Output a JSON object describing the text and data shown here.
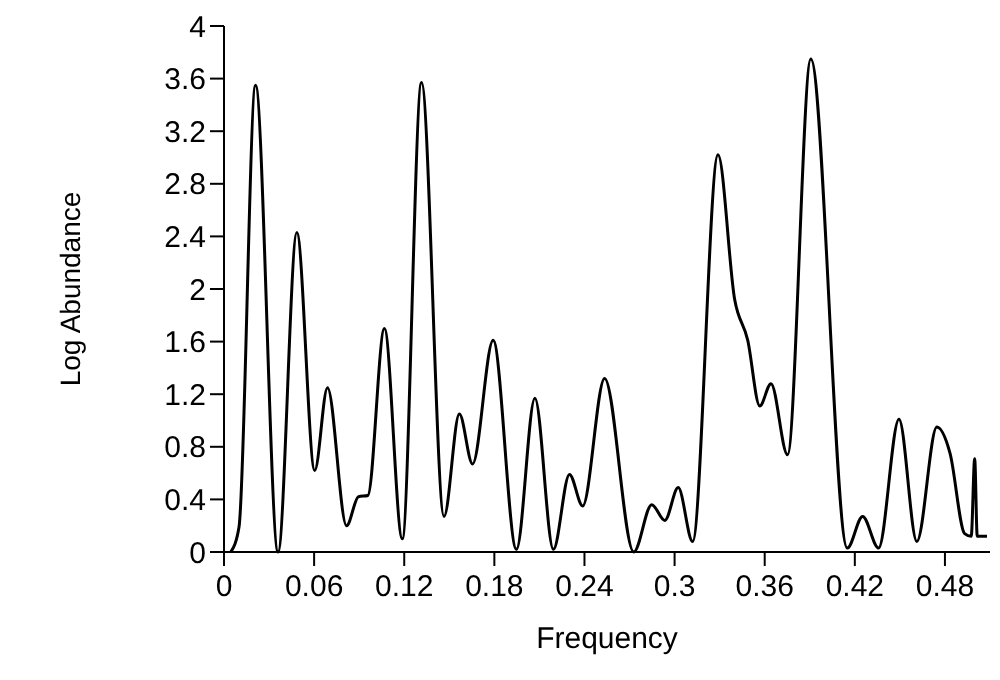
{
  "chart_data": {
    "type": "line",
    "xlabel": "Frequency",
    "ylabel": "Log Abundance",
    "color": "#000000",
    "x": [
      0.0045,
      0.01,
      0.021,
      0.036,
      0.0485,
      0.0604,
      0.0689,
      0.0816,
      0.0895,
      0.0958,
      0.1068,
      0.1187,
      0.1315,
      0.1465,
      0.1567,
      0.1655,
      0.1792,
      0.1947,
      0.207,
      0.2193,
      0.23,
      0.2388,
      0.2534,
      0.2728,
      0.2848,
      0.2935,
      0.3024,
      0.312,
      0.3289,
      0.34,
      0.3487,
      0.3567,
      0.3642,
      0.3752,
      0.3907,
      0.415,
      0.4252,
      0.4358,
      0.4494,
      0.4613,
      0.4746,
      0.4834,
      0.4931,
      0.4975,
      0.4998,
      0.5015,
      0.508
    ],
    "values": [
      0,
      0.19,
      3.55,
      0,
      2.43,
      0.62,
      1.25,
      0.2,
      0.42,
      0.43,
      1.7,
      0.1,
      3.57,
      0.27,
      1.05,
      0.67,
      1.61,
      0.02,
      1.17,
      0.02,
      0.59,
      0.35,
      1.32,
      0,
      0.36,
      0.24,
      0.49,
      0.08,
      3.02,
      1.92,
      1.61,
      1.11,
      1.28,
      0.74,
      3.75,
      0.03,
      0.27,
      0.03,
      1.01,
      0.08,
      0.95,
      0.75,
      0.14,
      0.12,
      0.71,
      0.12,
      0.12
    ],
    "xlim": [
      0,
      0.51
    ],
    "ylim": [
      0,
      4
    ],
    "xticks": [
      0,
      0.06,
      0.12,
      0.18,
      0.24,
      0.3,
      0.36,
      0.42,
      0.48
    ],
    "yticks": [
      0,
      0.4,
      0.8,
      1.2,
      1.6,
      2,
      2.4,
      2.8,
      3.2,
      3.6,
      4
    ],
    "grid": false,
    "marker": "none",
    "line_style": "solid"
  }
}
